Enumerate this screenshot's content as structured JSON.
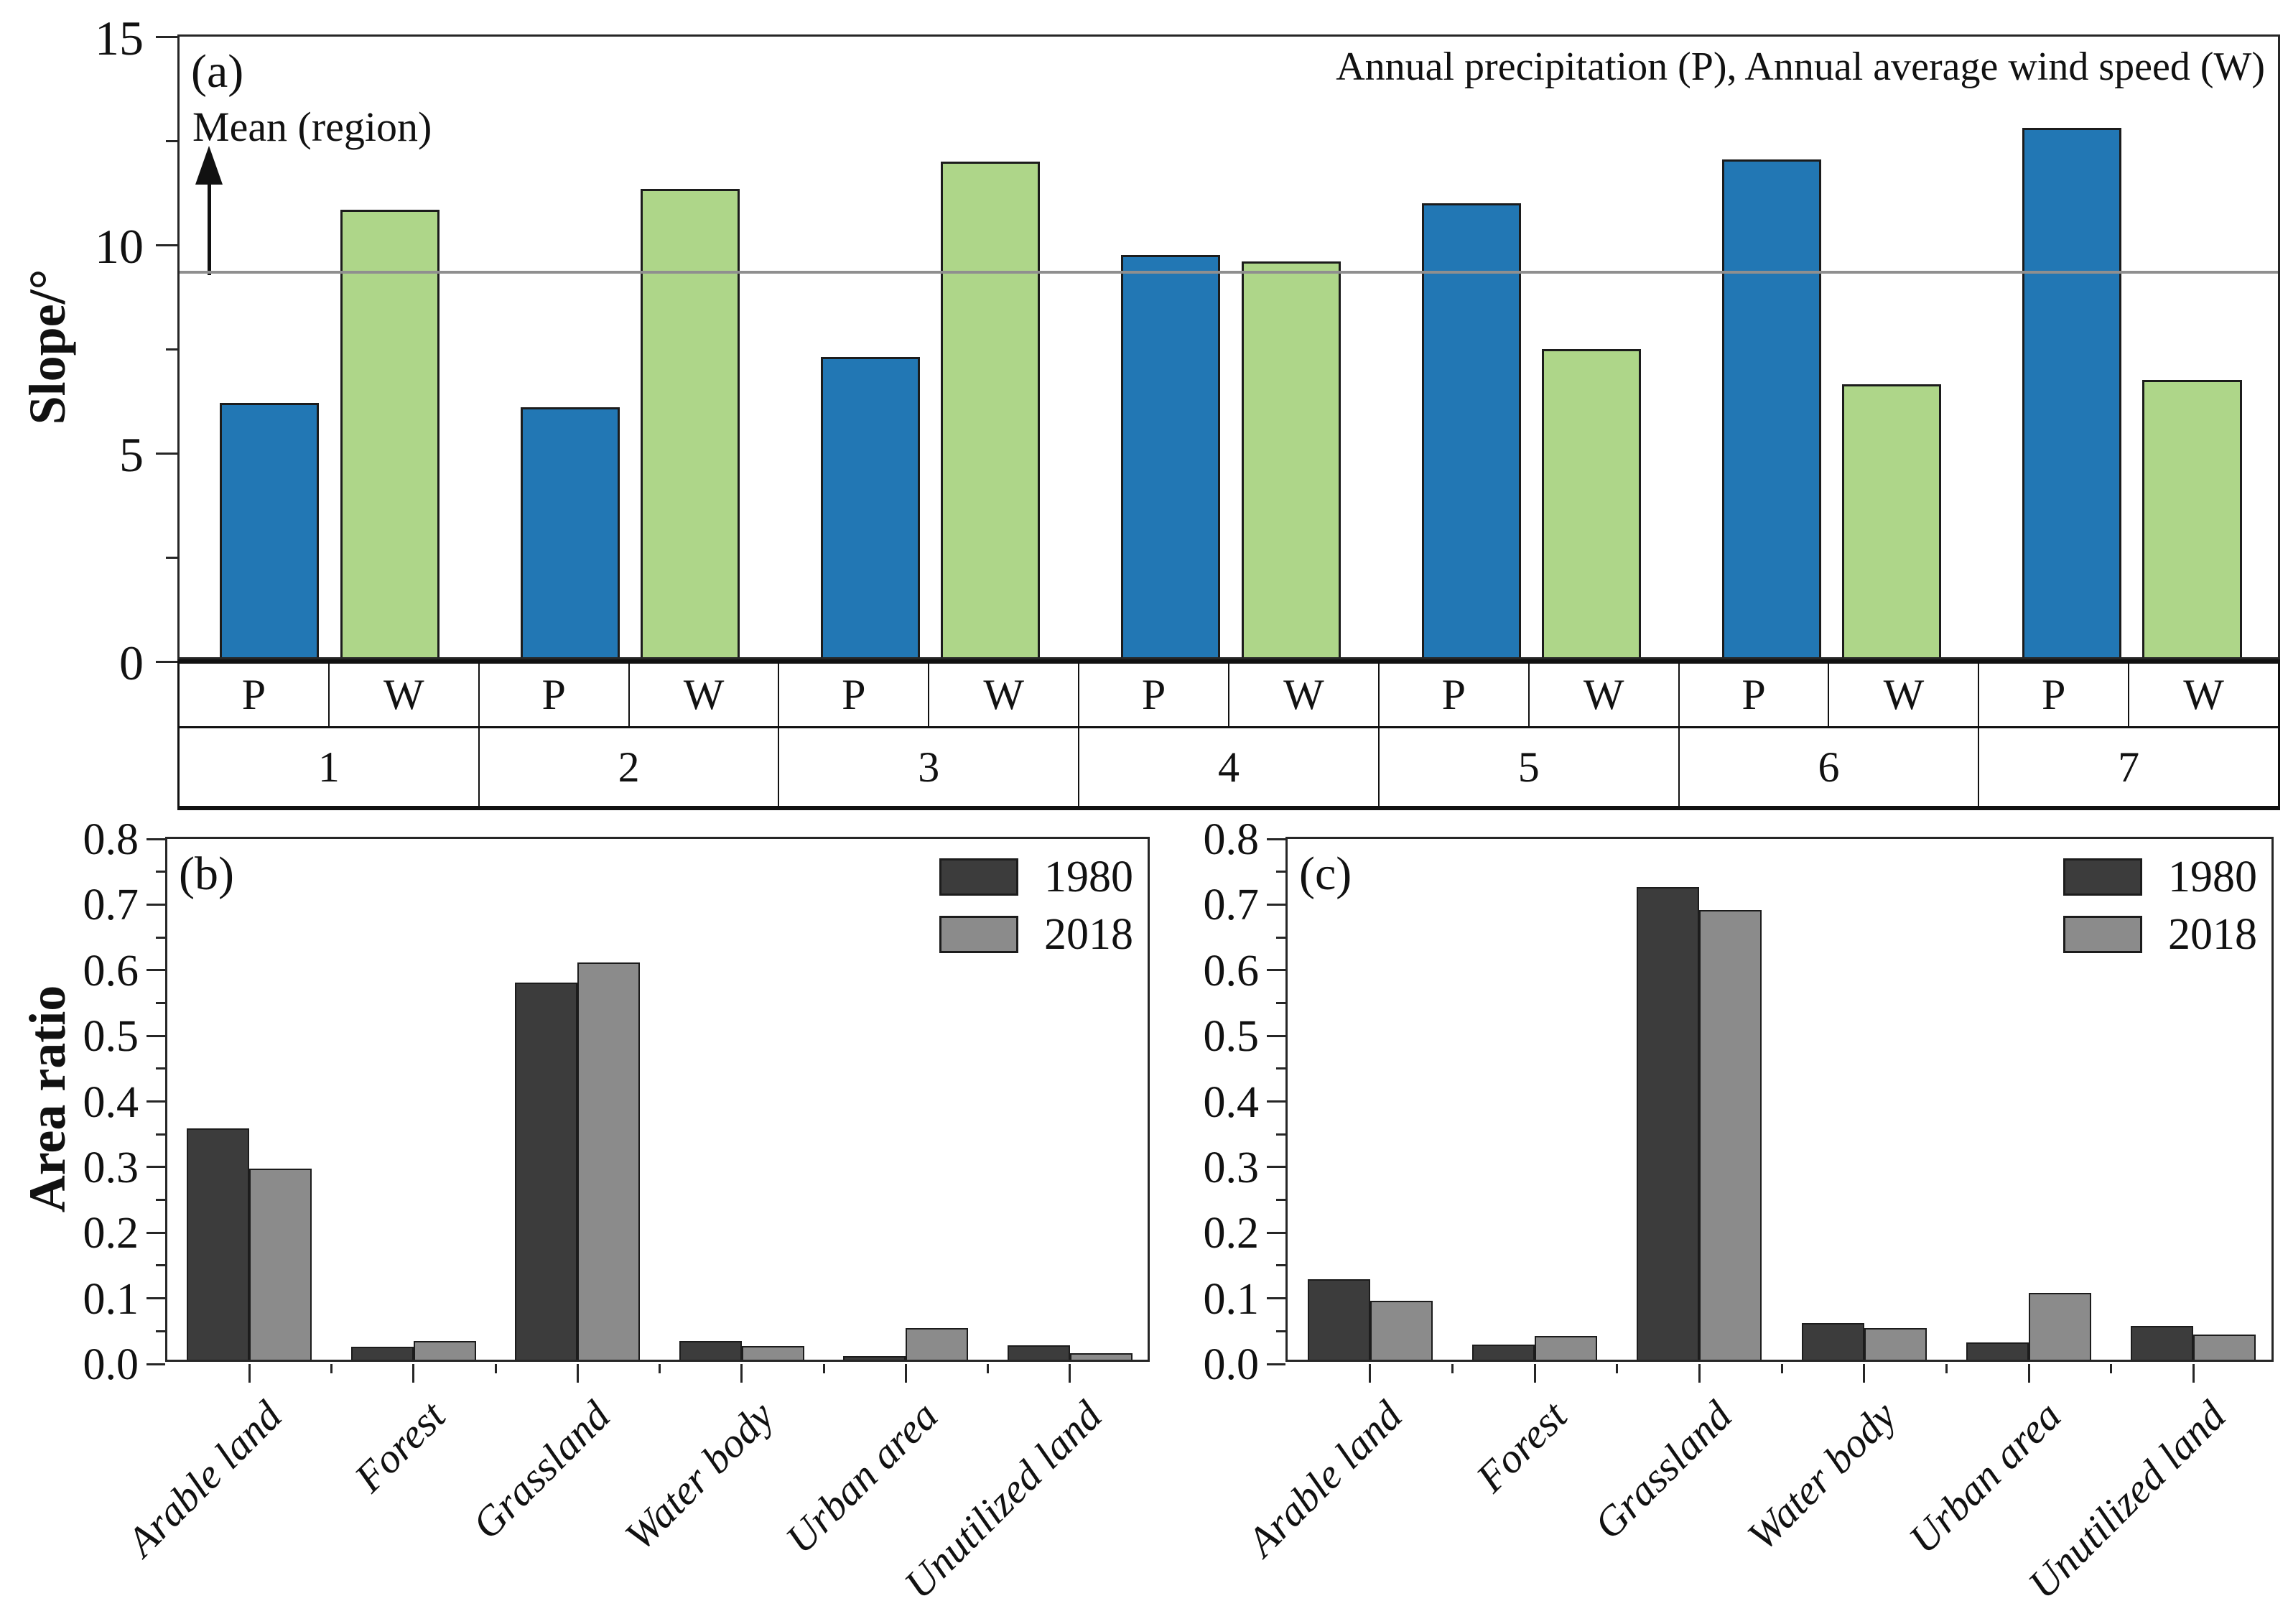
{
  "figure": {
    "background": "#ffffff",
    "axis_color": "#262626"
  },
  "chart_data": [
    {
      "id": "a",
      "type": "bar",
      "panel_label": "(a)",
      "ylabel": "Slope/°",
      "ylim": [
        0,
        15
      ],
      "yticks_major": [
        0,
        5,
        10,
        15
      ],
      "yticks_minor": [
        2.5,
        7.5,
        12.5
      ],
      "grid": false,
      "categories": [
        "1",
        "2",
        "3",
        "4",
        "5",
        "6",
        "7"
      ],
      "sub_labels": [
        "P",
        "W"
      ],
      "series": [
        {
          "name": "P",
          "color": "#2277b4",
          "values": [
            6.1,
            6.0,
            7.2,
            9.65,
            10.9,
            11.95,
            12.7
          ]
        },
        {
          "name": "W",
          "color": "#aed689",
          "values": [
            10.75,
            11.25,
            11.9,
            9.5,
            7.4,
            6.55,
            6.65
          ]
        }
      ],
      "mean_line": {
        "value": 9.35,
        "label": "Mean (region)",
        "color": "#8f8f8f"
      },
      "annotation": "Annual precipitation (P), Annual average wind speed (W)"
    },
    {
      "id": "b",
      "type": "bar",
      "panel_label": "(b)",
      "ylabel": "Area ratio",
      "ylim": [
        0,
        0.8
      ],
      "ytick_step": 0.1,
      "ytick_minor_step": 0.05,
      "ytick_decimals": 1,
      "grid": false,
      "legend_position": "top-right",
      "categories": [
        "Arable land",
        "Forest",
        "Grassland",
        "Water body",
        "Urban area",
        "Unutilized land"
      ],
      "series": [
        {
          "name": "1980",
          "color": "#3c3c3c",
          "values": [
            0.352,
            0.02,
            0.575,
            0.029,
            0.006,
            0.022
          ]
        },
        {
          "name": "2018",
          "color": "#8b8b8b",
          "values": [
            0.291,
            0.028,
            0.605,
            0.021,
            0.048,
            0.01
          ]
        }
      ]
    },
    {
      "id": "c",
      "type": "bar",
      "panel_label": "(c)",
      "ylabel": "",
      "ylim": [
        0,
        0.8
      ],
      "ytick_step": 0.1,
      "ytick_minor_step": 0.05,
      "ytick_decimals": 1,
      "grid": false,
      "legend_position": "top-right",
      "categories": [
        "Arable land",
        "Forest",
        "Grassland",
        "Water body",
        "Urban area",
        "Unutilized land"
      ],
      "series": [
        {
          "name": "1980",
          "color": "#3c3c3c",
          "values": [
            0.123,
            0.023,
            0.72,
            0.056,
            0.026,
            0.052
          ]
        },
        {
          "name": "2018",
          "color": "#8b8b8b",
          "values": [
            0.09,
            0.036,
            0.685,
            0.048,
            0.102,
            0.038
          ]
        }
      ]
    }
  ]
}
